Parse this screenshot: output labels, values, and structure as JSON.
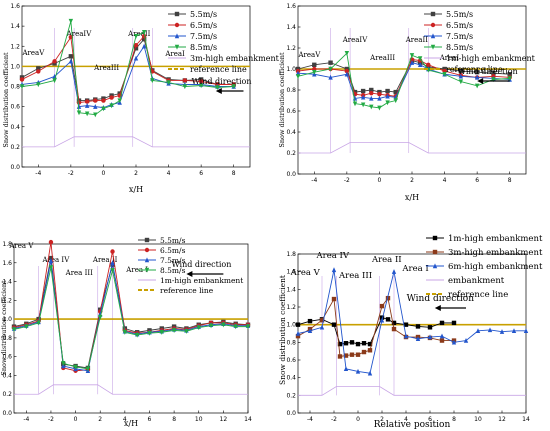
{
  "chart_data": [
    {
      "type": "line",
      "xlabel": "x/H",
      "ylabel": "Snow distribution coefficient",
      "xlim": [
        -5,
        9
      ],
      "ylim": [
        0.0,
        1.6
      ],
      "xticks": [
        "-4",
        "-2",
        "0",
        "2",
        "4",
        "6",
        "8"
      ],
      "yticks": [
        "0.0",
        "0.2",
        "0.4",
        "0.6",
        "0.8",
        "1.0",
        "1.2",
        "1.4",
        "1.6"
      ],
      "x": [
        -5,
        -4,
        -3,
        -2,
        -1.5,
        -1,
        -0.5,
        0,
        0.5,
        1,
        2,
        2.5,
        3,
        4,
        5,
        6,
        7,
        8
      ],
      "series": [
        {
          "name": "5.5m/s",
          "marker": "square",
          "color": "#404040",
          "values": [
            0.89,
            0.98,
            1.03,
            1.1,
            0.66,
            0.66,
            0.67,
            0.68,
            0.71,
            0.73,
            1.18,
            1.27,
            0.96,
            0.87,
            0.86,
            0.87,
            0.82,
            0.82
          ]
        },
        {
          "name": "6.5m/s",
          "marker": "circle",
          "color": "#cc2222",
          "values": [
            0.87,
            0.95,
            1.05,
            1.29,
            0.64,
            0.65,
            0.66,
            0.66,
            0.69,
            0.71,
            1.21,
            1.3,
            0.95,
            0.86,
            0.86,
            0.85,
            0.82,
            0.82
          ]
        },
        {
          "name": "7.5m/s",
          "marker": "triangle",
          "color": "#2255cc",
          "values": [
            0.82,
            0.84,
            0.9,
            1.05,
            0.6,
            0.61,
            0.6,
            0.59,
            0.62,
            0.64,
            1.08,
            1.2,
            0.88,
            0.83,
            0.82,
            0.82,
            0.8,
            0.8
          ]
        },
        {
          "name": "8.5m/s",
          "marker": "triangle-down",
          "color": "#22aa44",
          "values": [
            0.8,
            0.82,
            0.86,
            1.45,
            0.54,
            0.53,
            0.52,
            0.58,
            0.61,
            0.66,
            1.3,
            1.34,
            0.86,
            0.84,
            0.8,
            0.81,
            0.79,
            0.8
          ]
        }
      ],
      "embankment_label": "3m-high embankment",
      "reference_label": "reference line",
      "reference_value": 1.0,
      "embankment_shape": {
        "x": [
          -5,
          -3,
          -1.8,
          1.8,
          3,
          9
        ],
        "y": [
          0.2,
          0.2,
          0.3,
          0.3,
          0.2,
          0.2
        ]
      },
      "areas": [
        "AreaV",
        "AreaIV",
        "AreaIII",
        "AreaII",
        "AreaI"
      ],
      "annotation": "Wind direction",
      "legend": "top-right"
    },
    {
      "type": "line",
      "xlabel": "x/H",
      "ylabel": "Snow distribution coefficient",
      "xlim": [
        -5,
        9
      ],
      "ylim": [
        0.0,
        1.6
      ],
      "xticks": [
        "-4",
        "-2",
        "0",
        "2",
        "4",
        "6",
        "8"
      ],
      "yticks": [
        "0.0",
        "0.2",
        "0.4",
        "0.6",
        "0.8",
        "1.0",
        "1.2",
        "1.4",
        "1.6"
      ],
      "x": [
        -5,
        -4,
        -3,
        -2,
        -1.5,
        -1,
        -0.5,
        0,
        0.5,
        1,
        2,
        2.5,
        3,
        4,
        5,
        6,
        7,
        8
      ],
      "series": [
        {
          "name": "5.5m/s",
          "marker": "square",
          "color": "#404040",
          "values": [
            1.0,
            1.04,
            1.06,
            1.0,
            0.78,
            0.79,
            0.8,
            0.78,
            0.79,
            0.78,
            1.08,
            1.06,
            1.02,
            1.0,
            0.98,
            0.97,
            0.96,
            0.95
          ]
        },
        {
          "name": "6.5m/s",
          "marker": "circle",
          "color": "#cc2222",
          "values": [
            0.98,
            1.0,
            1.0,
            0.98,
            0.76,
            0.75,
            0.77,
            0.76,
            0.75,
            0.74,
            1.09,
            1.08,
            1.04,
            0.98,
            0.94,
            0.92,
            0.93,
            0.92
          ]
        },
        {
          "name": "7.5m/s",
          "marker": "triangle",
          "color": "#2255cc",
          "values": [
            0.96,
            0.95,
            0.92,
            0.95,
            0.72,
            0.73,
            0.72,
            0.72,
            0.74,
            0.73,
            1.06,
            1.04,
            1.0,
            0.95,
            0.93,
            0.92,
            0.91,
            0.9
          ]
        },
        {
          "name": "8.5m/s",
          "marker": "triangle-down",
          "color": "#22aa44",
          "values": [
            0.93,
            0.97,
            1.0,
            1.15,
            0.67,
            0.66,
            0.64,
            0.63,
            0.68,
            0.7,
            1.13,
            1.1,
            0.99,
            0.95,
            0.88,
            0.84,
            0.9,
            0.91
          ]
        }
      ],
      "embankment_label": "1m-high embankment",
      "reference_label": "reference line",
      "reference_value": 1.0,
      "embankment_shape": {
        "x": [
          -5,
          -3,
          -1.8,
          1.8,
          3,
          9
        ],
        "y": [
          0.2,
          0.2,
          0.3,
          0.3,
          0.2,
          0.2
        ]
      },
      "areas": [
        "AreaV",
        "AreaIV",
        "AreaIII",
        "AreaII",
        "AreaI"
      ],
      "annotation": "Wind direction",
      "legend": "top-right"
    },
    {
      "type": "line",
      "xlabel": "x/H",
      "ylabel": "Snow distribution coefficient",
      "xlim": [
        -5,
        14
      ],
      "ylim": [
        0.0,
        1.8
      ],
      "xticks": [
        "-4",
        "-2",
        "0",
        "2",
        "4",
        "6",
        "8",
        "10",
        "12",
        "14"
      ],
      "yticks": [
        "0.0",
        "0.2",
        "0.4",
        "0.6",
        "0.8",
        "1.0",
        "1.2",
        "1.4",
        "1.6",
        "1.8"
      ],
      "x": [
        -5,
        -4,
        -3,
        -2,
        -1,
        0,
        1,
        2,
        3,
        4,
        5,
        6,
        7,
        8,
        9,
        10,
        11,
        12,
        13,
        14
      ],
      "series": [
        {
          "name": "5.5m/s",
          "marker": "square",
          "color": "#404040",
          "values": [
            0.92,
            0.95,
            1.0,
            1.65,
            0.52,
            0.5,
            0.48,
            1.1,
            1.58,
            0.9,
            0.86,
            0.88,
            0.9,
            0.92,
            0.9,
            0.94,
            0.96,
            0.97,
            0.95,
            0.94
          ]
        },
        {
          "name": "6.5m/s",
          "marker": "circle",
          "color": "#cc2222",
          "values": [
            0.91,
            0.94,
            0.98,
            1.82,
            0.48,
            0.45,
            0.46,
            1.08,
            1.72,
            0.88,
            0.85,
            0.86,
            0.88,
            0.9,
            0.89,
            0.93,
            0.96,
            0.96,
            0.94,
            0.94
          ]
        },
        {
          "name": "7.5m/s",
          "marker": "triangle",
          "color": "#2255cc",
          "values": [
            0.9,
            0.93,
            0.97,
            1.62,
            0.5,
            0.47,
            0.45,
            1.05,
            1.6,
            0.87,
            0.84,
            0.86,
            0.87,
            0.89,
            0.88,
            0.92,
            0.94,
            0.95,
            0.93,
            0.93
          ]
        },
        {
          "name": "8.5m/s",
          "marker": "triangle-down",
          "color": "#22aa44",
          "values": [
            0.89,
            0.92,
            0.96,
            1.55,
            0.53,
            0.49,
            0.47,
            1.02,
            1.52,
            0.86,
            0.83,
            0.85,
            0.86,
            0.88,
            0.87,
            0.91,
            0.93,
            0.94,
            0.92,
            0.92
          ]
        }
      ],
      "embankment_label": "1m-high embankment",
      "reference_label": "reference line",
      "reference_value": 1.0,
      "embankment_shape": {
        "x": [
          -5,
          -3,
          -1.8,
          1.8,
          3,
          14
        ],
        "y": [
          0.2,
          0.2,
          0.3,
          0.3,
          0.2,
          0.2
        ]
      },
      "areas": [
        "Area V",
        "Area IV",
        "Area III",
        "Area II",
        "Area I"
      ],
      "annotation": "Wind direction",
      "legend": "top-right"
    },
    {
      "type": "line",
      "xlabel": "Relative position",
      "ylabel": "Snow distribution coefficient",
      "xlim": [
        -5,
        14
      ],
      "ylim": [
        0.0,
        1.8
      ],
      "xticks": [
        "-4",
        "-2",
        "0",
        "2",
        "4",
        "6",
        "8",
        "10",
        "12",
        "14"
      ],
      "yticks": [
        "0.0",
        "0.2",
        "0.4",
        "0.6",
        "0.8",
        "1.0",
        "1.2",
        "1.4",
        "1.6",
        "1.8"
      ],
      "series": [
        {
          "name": "1m-high embankment",
          "marker": "square",
          "color": "#000000",
          "x": [
            -5,
            -4,
            -3,
            -2,
            -1.5,
            -1,
            -0.5,
            0,
            0.5,
            1,
            2,
            2.5,
            3,
            4,
            5,
            6,
            7,
            8
          ],
          "values": [
            1.0,
            1.04,
            1.06,
            1.0,
            0.78,
            0.79,
            0.8,
            0.78,
            0.79,
            0.78,
            1.08,
            1.06,
            1.02,
            1.0,
            0.98,
            0.97,
            1.02,
            1.02
          ]
        },
        {
          "name": "3m-high embankment",
          "marker": "square",
          "color": "#8b3a1a",
          "x": [
            -5,
            -4,
            -3,
            -2,
            -1.5,
            -1,
            -0.5,
            0,
            0.5,
            1,
            2,
            2.5,
            3,
            4,
            5,
            6,
            7,
            8
          ],
          "values": [
            0.87,
            0.95,
            1.05,
            1.29,
            0.64,
            0.65,
            0.66,
            0.66,
            0.69,
            0.71,
            1.21,
            1.3,
            0.95,
            0.86,
            0.86,
            0.85,
            0.82,
            0.82
          ]
        },
        {
          "name": "6m-high embankment",
          "marker": "triangle",
          "color": "#2255cc",
          "x": [
            -5,
            -4,
            -3,
            -2,
            -1,
            0,
            1,
            2,
            3,
            4,
            5,
            6,
            7,
            8,
            9,
            10,
            11,
            12,
            13,
            14
          ],
          "values": [
            0.9,
            0.93,
            0.97,
            1.62,
            0.5,
            0.47,
            0.45,
            1.05,
            1.6,
            0.87,
            0.84,
            0.86,
            0.87,
            0.8,
            0.82,
            0.93,
            0.94,
            0.92,
            0.93,
            0.93
          ]
        }
      ],
      "embankment_label": "embankment",
      "reference_label": "reference line",
      "reference_value": 1.0,
      "embankment_shape": {
        "x": [
          -5,
          -3,
          -1.8,
          1.8,
          3,
          14
        ],
        "y": [
          0.2,
          0.2,
          0.3,
          0.3,
          0.2,
          0.2
        ]
      },
      "areas": [
        "Area V",
        "Area IV",
        "Area III",
        "Area II",
        "Area I"
      ],
      "annotation": "Wind direction",
      "legend": "top-right"
    }
  ]
}
